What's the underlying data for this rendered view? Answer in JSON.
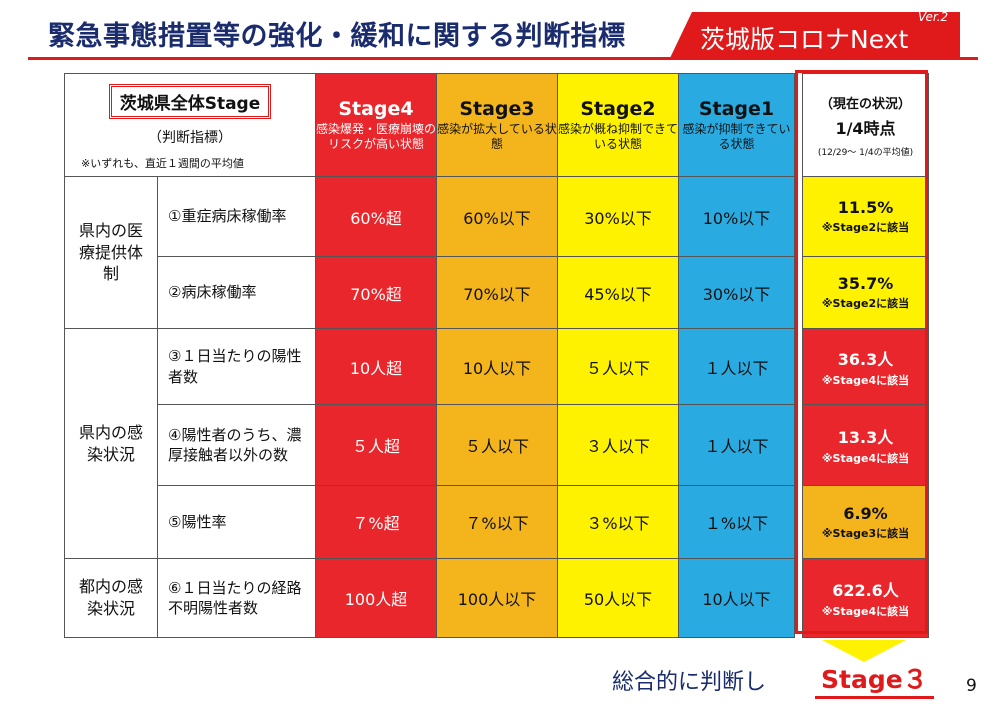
{
  "header": {
    "title": "緊急事態措置等の強化・緩和に関する判断指標",
    "brand": "茨城版コロナNext",
    "version": "Ver.2"
  },
  "table": {
    "corner": {
      "title": "茨城県全体Stage",
      "subtitle": "（判断指標）",
      "note": "※いずれも、直近１週間の平均値"
    },
    "stages": [
      {
        "name": "Stage4",
        "desc": "感染爆発・医療崩壊のリスクが高い状態"
      },
      {
        "name": "Stage3",
        "desc": "感染が拡大している状態"
      },
      {
        "name": "Stage2",
        "desc": "感染が概ね抑制できている状態"
      },
      {
        "name": "Stage1",
        "desc": "感染が抑制できている状態"
      }
    ],
    "current": {
      "line1": "（現在の状況）",
      "line2": "1/4時点",
      "line3": "(12/29～ 1/4の平均値)"
    },
    "categories": {
      "medical": "県内の医療提供体制",
      "infection": "県内の感染状況",
      "tokyo": "都内の感染状況"
    },
    "rows": [
      {
        "indicator": "①重症病床稼働率",
        "s4": "60%超",
        "s3": "60%以下",
        "s2": "30%以下",
        "s1": "10%以下",
        "cur": "11.5%",
        "cur_note": "※Stage2に該当"
      },
      {
        "indicator": "②病床稼働率",
        "s4": "70%超",
        "s3": "70%以下",
        "s2": "45%以下",
        "s1": "30%以下",
        "cur": "35.7%",
        "cur_note": "※Stage2に該当"
      },
      {
        "indicator": "③１日当たりの陽性者数",
        "s4": "10人超",
        "s3": "10人以下",
        "s2": "５人以下",
        "s1": "１人以下",
        "cur": "36.3人",
        "cur_note": "※Stage4に該当"
      },
      {
        "indicator": "④陽性者のうち、濃厚接触者以外の数",
        "s4": "５人超",
        "s3": "５人以下",
        "s2": "３人以下",
        "s1": "１人以下",
        "cur": "13.3人",
        "cur_note": "※Stage4に該当"
      },
      {
        "indicator": "⑤陽性率",
        "s4": "７%超",
        "s3": "７%以下",
        "s2": "３%以下",
        "s1": "１%以下",
        "cur": "6.9%",
        "cur_note": "※Stage3に該当"
      },
      {
        "indicator": "⑥１日当たりの経路不明陽性者数",
        "s4": "100人超",
        "s3": "100人以下",
        "s2": "50人以下",
        "s1": "10人以下",
        "cur": "622.6人",
        "cur_note": "※Stage4に該当"
      }
    ]
  },
  "summary": {
    "text": "総合的に判断し",
    "stage": "Stage３"
  },
  "page_number": "9",
  "colors": {
    "stage4": "#e8262b",
    "stage3": "#f4b51c",
    "stage2": "#fff200",
    "stage1": "#29abe2",
    "accent_red": "#e0191b",
    "title_navy": "#1a2c6e"
  }
}
